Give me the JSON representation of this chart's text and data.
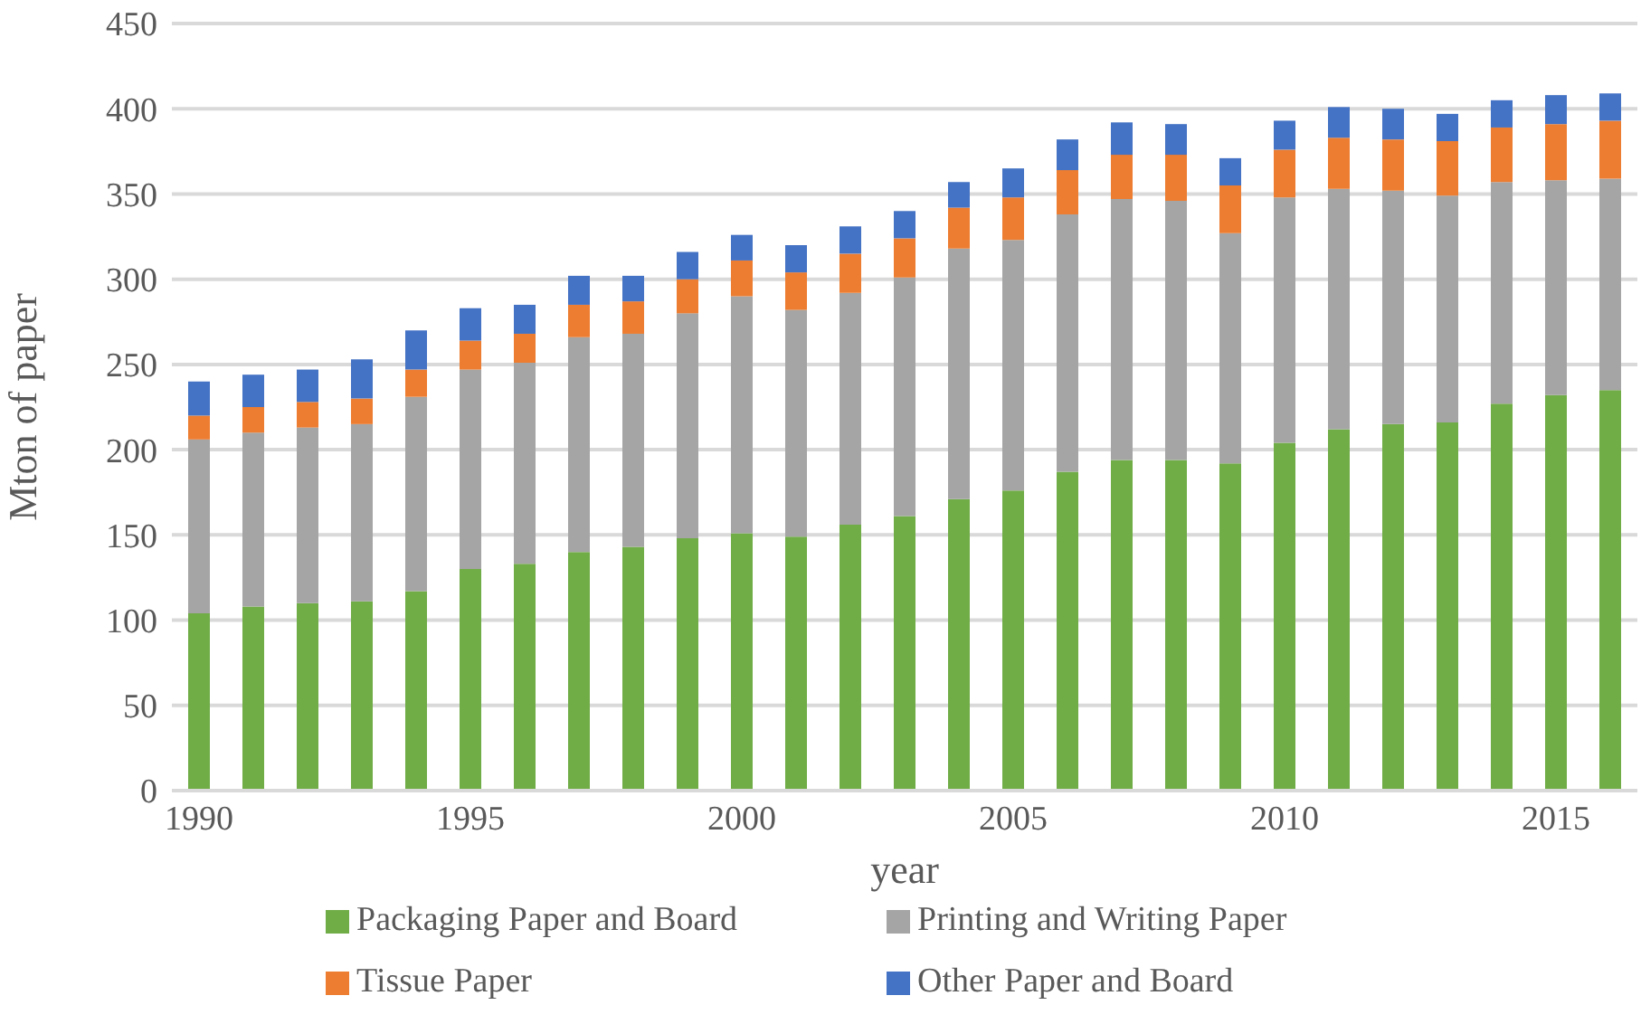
{
  "chart_data": {
    "type": "bar",
    "stacked": true,
    "xlabel": "year",
    "ylabel": "Mton of paper",
    "categories": [
      "1990",
      null,
      null,
      null,
      null,
      "1995",
      null,
      null,
      null,
      null,
      "2000",
      null,
      null,
      null,
      null,
      "2005",
      null,
      null,
      null,
      null,
      "2010",
      null,
      null,
      null,
      null,
      "2015",
      null
    ],
    "series": [
      {
        "name": "Packaging Paper and Board",
        "color": "#70ad47",
        "values": [
          104,
          108,
          110,
          111,
          117,
          130,
          133,
          140,
          143,
          148,
          151,
          149,
          156,
          161,
          171,
          176,
          187,
          194,
          194,
          192,
          204,
          212,
          215,
          216,
          227,
          232,
          235
        ]
      },
      {
        "name": "Printing and Writing Paper",
        "color": "#a5a5a5",
        "values": [
          102,
          102,
          103,
          104,
          114,
          117,
          118,
          126,
          125,
          132,
          139,
          133,
          136,
          140,
          147,
          147,
          151,
          153,
          152,
          135,
          144,
          141,
          137,
          133,
          130,
          126,
          124
        ]
      },
      {
        "name": "Tissue Paper",
        "color": "#ed7d31",
        "values": [
          14,
          15,
          15,
          15,
          16,
          17,
          17,
          19,
          19,
          20,
          21,
          22,
          23,
          23,
          24,
          25,
          26,
          26,
          27,
          28,
          28,
          30,
          30,
          32,
          32,
          33,
          34
        ]
      },
      {
        "name": "Other Paper and Board",
        "color": "#4472c4",
        "values": [
          20,
          19,
          19,
          23,
          23,
          19,
          17,
          17,
          15,
          16,
          15,
          16,
          16,
          16,
          15,
          17,
          18,
          19,
          18,
          16,
          17,
          18,
          18,
          16,
          16,
          17,
          16
        ]
      }
    ],
    "ylim": [
      0,
      450
    ],
    "yticks": [
      0,
      50,
      100,
      150,
      200,
      250,
      300,
      350,
      400,
      450
    ],
    "grid": "y",
    "legend": "bottom"
  }
}
